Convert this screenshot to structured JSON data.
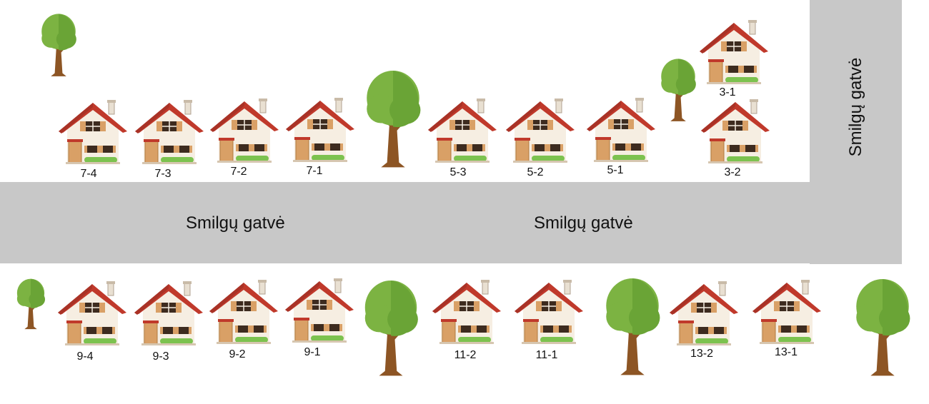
{
  "streets": {
    "main_left": "Smilgų gatvė",
    "main_right": "Smilgų gatvė",
    "side": "Smilgų gatvė"
  },
  "colors": {
    "road": "#c8c8c8",
    "roof": "#c0392b",
    "wall": "#f6eee2",
    "door": "#d9a066",
    "tree_leaf": "#7cb342",
    "tree_trunk": "#8d5524"
  },
  "houses_top": [
    {
      "label": "7-4"
    },
    {
      "label": "7-3"
    },
    {
      "label": "7-2"
    },
    {
      "label": "7-1"
    },
    {
      "label": "5-3"
    },
    {
      "label": "5-2"
    },
    {
      "label": "5-1"
    },
    {
      "label": "3-1"
    },
    {
      "label": "3-2"
    }
  ],
  "houses_bottom": [
    {
      "label": "9-4"
    },
    {
      "label": "9-3"
    },
    {
      "label": "9-2"
    },
    {
      "label": "9-1"
    },
    {
      "label": "11-2"
    },
    {
      "label": "11-1"
    },
    {
      "label": "13-2"
    },
    {
      "label": "13-1"
    }
  ]
}
